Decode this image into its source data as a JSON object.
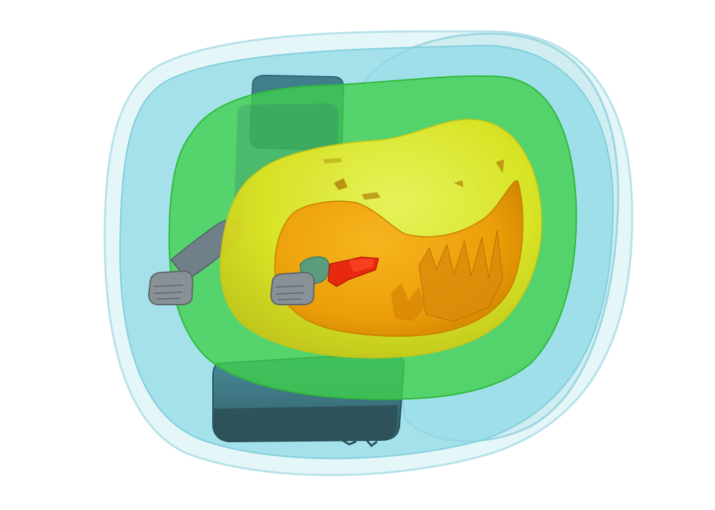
{
  "scene": {
    "background": "#ffffff",
    "layers": [
      {
        "name": "outer-shell",
        "color": "#a9dfe9"
      },
      {
        "name": "cyan-isosurface",
        "color": "#7fd6e4"
      },
      {
        "name": "green-isosurface",
        "color": "#3fcf4a"
      },
      {
        "name": "yellow-isosurface",
        "color": "#e6ea1e"
      },
      {
        "name": "orange-isosurface",
        "color": "#f0a000"
      },
      {
        "name": "red-isosurface",
        "color": "#e8290f"
      }
    ],
    "objects": [
      {
        "name": "vehicle-seat",
        "color": "#3f7f8c"
      },
      {
        "name": "headrest",
        "color": "#3f7f8c"
      },
      {
        "name": "arm-left",
        "color": "#6f7f86"
      },
      {
        "name": "hand-left",
        "color": "#8a9196"
      },
      {
        "name": "hand-right",
        "color": "#8a9196"
      }
    ]
  }
}
